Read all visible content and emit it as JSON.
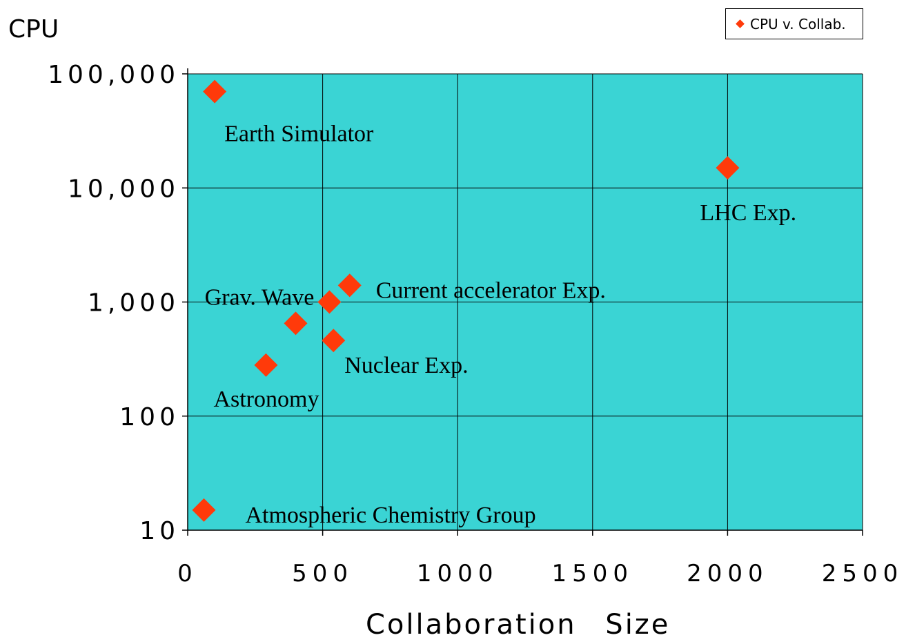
{
  "chart_data": {
    "type": "scatter",
    "title": "",
    "xlabel": "Collaboration Size",
    "ylabel": "CPU",
    "xlim": [
      0,
      2500
    ],
    "ylim": [
      10,
      100000
    ],
    "y_scale": "log",
    "x_ticks": [
      "0",
      "500",
      "1000",
      "1500",
      "2000",
      "2500"
    ],
    "x_tick_values": [
      0,
      500,
      1000,
      1500,
      2000,
      2500
    ],
    "y_ticks": [
      "10",
      "100",
      "1,000",
      "10,000",
      "100,000"
    ],
    "y_tick_values": [
      10,
      100,
      1000,
      10000,
      100000
    ],
    "grid": true,
    "legend_position": "top-right",
    "plot_background": "#3ad4d4",
    "marker_color": "#ff3a0a",
    "series": [
      {
        "name": "CPU v. Collab.",
        "points": [
          {
            "x": 100,
            "y": 70000,
            "label": "Earth Simulator"
          },
          {
            "x": 2000,
            "y": 15000,
            "label": "LHC Exp."
          },
          {
            "x": 600,
            "y": 1400,
            "label": "Current accelerator Exp."
          },
          {
            "x": 525,
            "y": 1000,
            "label": "Grav. Wave"
          },
          {
            "x": 400,
            "y": 650,
            "label": ""
          },
          {
            "x": 540,
            "y": 460,
            "label": "Nuclear Exp."
          },
          {
            "x": 290,
            "y": 280,
            "label": "Astronomy"
          },
          {
            "x": 60,
            "y": 15,
            "label": "Atmospheric Chemistry Group"
          }
        ]
      }
    ]
  }
}
